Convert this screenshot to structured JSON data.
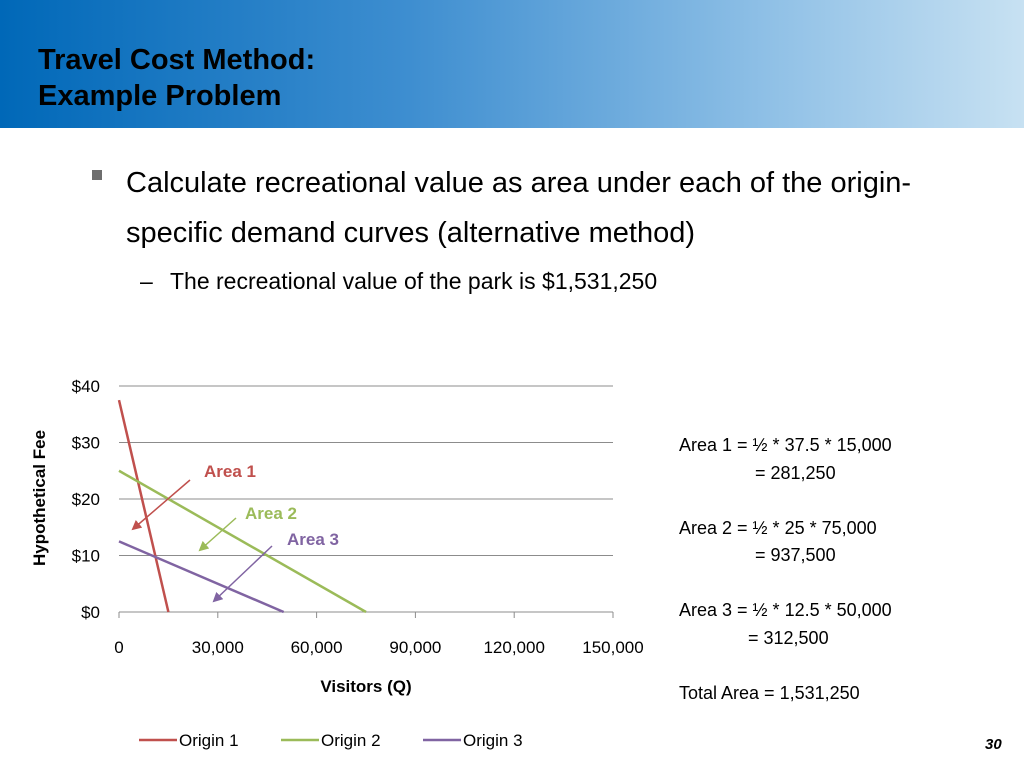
{
  "slide": {
    "title_line1": "Travel Cost Method:",
    "title_line2": "Example Problem",
    "bullet_main": "Calculate recreational value as area under each of the origin-specific demand curves (alternative method)",
    "bullet_sub": "The recreational value of the park is $1,531,250",
    "slide_number": "30",
    "colors": {
      "header_start": "#0068b8",
      "header_end": "#c7e1f2"
    }
  },
  "area_notes": [
    {
      "line1": "Area 1 = ½ * 37.5 * 15,000",
      "line2": "= 281,250"
    },
    {
      "line1": "Area 2 = ½ * 25 * 75,000",
      "line2": "= 937,500"
    },
    {
      "line1": "Area 3 = ½ * 12.5 * 50,000",
      "line2": "= 312,500"
    },
    {
      "line1": "Total Area = 1,531,250"
    }
  ],
  "chart_data": {
    "type": "line",
    "xlabel": "Visitors (Q)",
    "ylabel": "Hypothetical Fee",
    "xlim": [
      0,
      150000
    ],
    "ylim": [
      0,
      40
    ],
    "x_ticks": [
      "0",
      "30,000",
      "60,000",
      "90,000",
      "120,000",
      "150,000"
    ],
    "y_ticks": [
      "$0",
      "$10",
      "$20",
      "$30",
      "$40"
    ],
    "grid": "horizontal",
    "legend": "bottom",
    "series": [
      {
        "name": "Origin 1",
        "color": "#c0504d",
        "points": [
          [
            0,
            37.5
          ],
          [
            15000,
            0
          ]
        ]
      },
      {
        "name": "Origin 2",
        "color": "#9bbb59",
        "points": [
          [
            0,
            25
          ],
          [
            75000,
            0
          ]
        ]
      },
      {
        "name": "Origin 3",
        "color": "#8064a2",
        "points": [
          [
            0,
            12.5
          ],
          [
            50000,
            0
          ]
        ]
      }
    ],
    "annotations": [
      {
        "text": "Area 1",
        "color": "#c0504d"
      },
      {
        "text": "Area 2",
        "color": "#9bbb59"
      },
      {
        "text": "Area 3",
        "color": "#8064a2"
      }
    ]
  }
}
